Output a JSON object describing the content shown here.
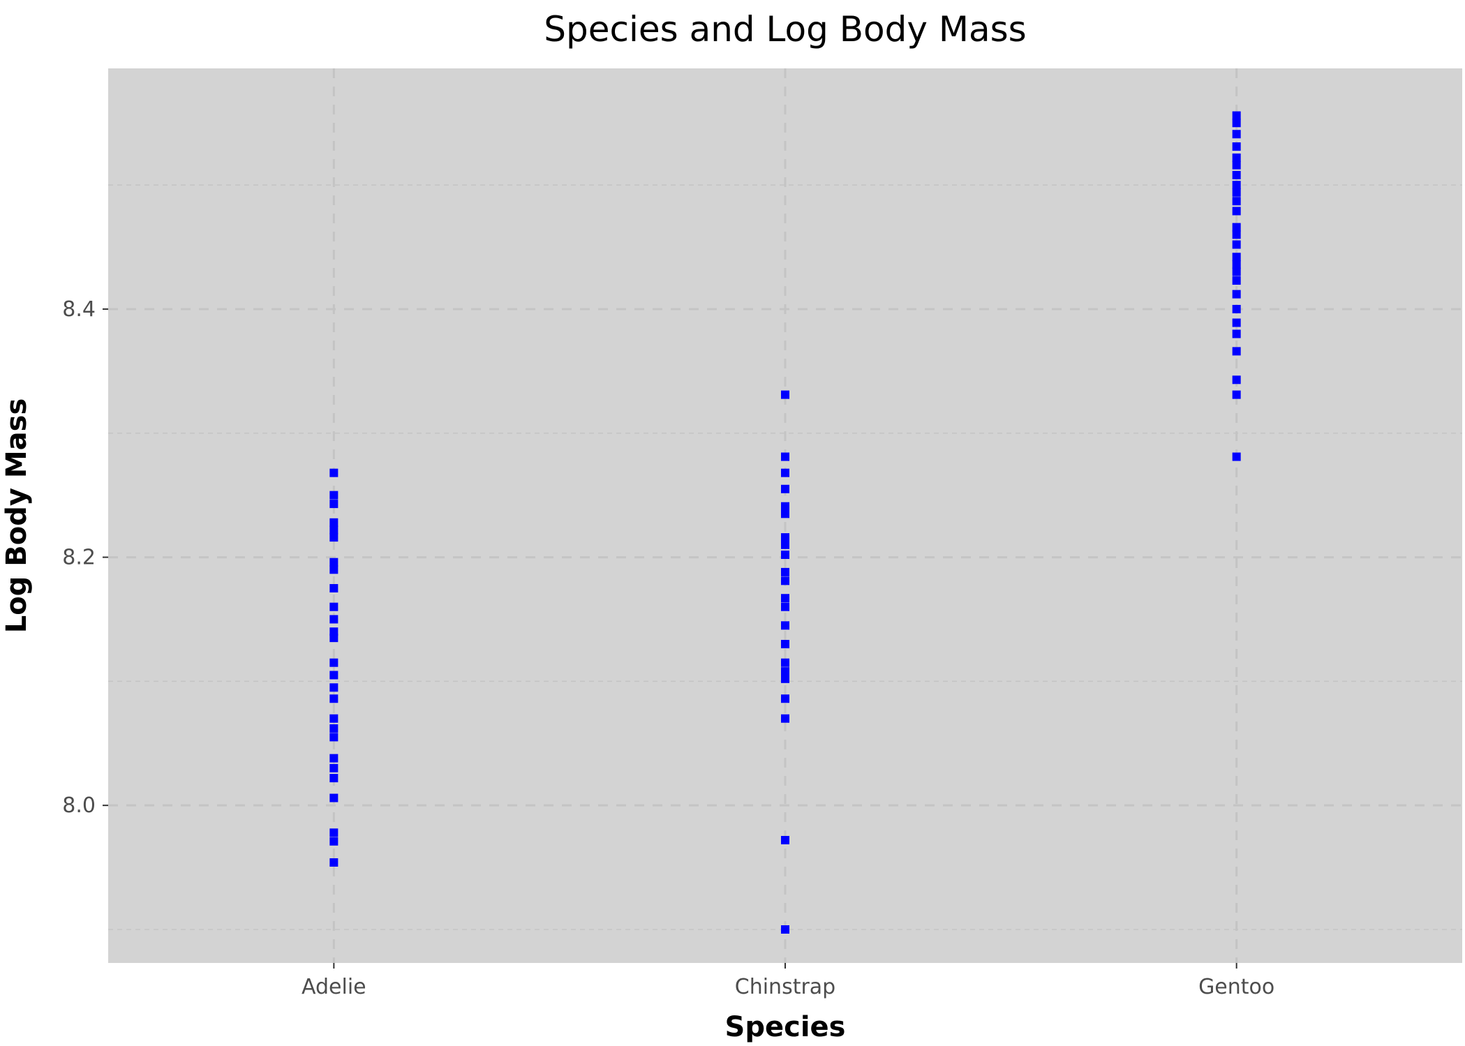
{
  "colors": {
    "panel_background": "#d3d3d3",
    "gridline": "#c4c4c4",
    "point": "#0000ff",
    "tick_label": "#4d4d4d",
    "title": "#000000"
  },
  "chart_data": {
    "type": "scatter",
    "title": "Species and Log Body Mass",
    "xlabel": "Species",
    "ylabel": "Log Body Mass",
    "categories": [
      "Adelie",
      "Chinstrap",
      "Gentoo"
    ],
    "ylim": [
      7.873,
      8.594
    ],
    "yticks": [
      8.0,
      8.2,
      8.4
    ],
    "ytick_labels": [
      "8.0",
      "8.2",
      "8.4"
    ],
    "grid": true,
    "legend": "none",
    "marker": "square",
    "series": [
      {
        "category": "Adelie",
        "y": [
          8.268,
          8.25,
          8.243,
          8.228,
          8.222,
          8.216,
          8.196,
          8.19,
          8.175,
          8.16,
          8.15,
          8.14,
          8.135,
          8.115,
          8.105,
          8.095,
          8.086,
          8.07,
          8.062,
          8.055,
          8.038,
          8.03,
          8.022,
          8.006,
          7.978,
          7.971,
          7.954
        ]
      },
      {
        "category": "Chinstrap",
        "y": [
          8.331,
          8.281,
          8.268,
          8.255,
          8.241,
          8.235,
          8.216,
          8.21,
          8.202,
          8.188,
          8.181,
          8.167,
          8.16,
          8.145,
          8.13,
          8.115,
          8.108,
          8.102,
          8.086,
          8.07,
          7.972,
          7.9
        ]
      },
      {
        "category": "Gentoo",
        "y": [
          8.556,
          8.55,
          8.541,
          8.531,
          8.522,
          8.516,
          8.508,
          8.5,
          8.494,
          8.487,
          8.479,
          8.466,
          8.46,
          8.452,
          8.442,
          8.436,
          8.43,
          8.423,
          8.412,
          8.4,
          8.389,
          8.38,
          8.366,
          8.343,
          8.331,
          8.281
        ]
      }
    ]
  }
}
